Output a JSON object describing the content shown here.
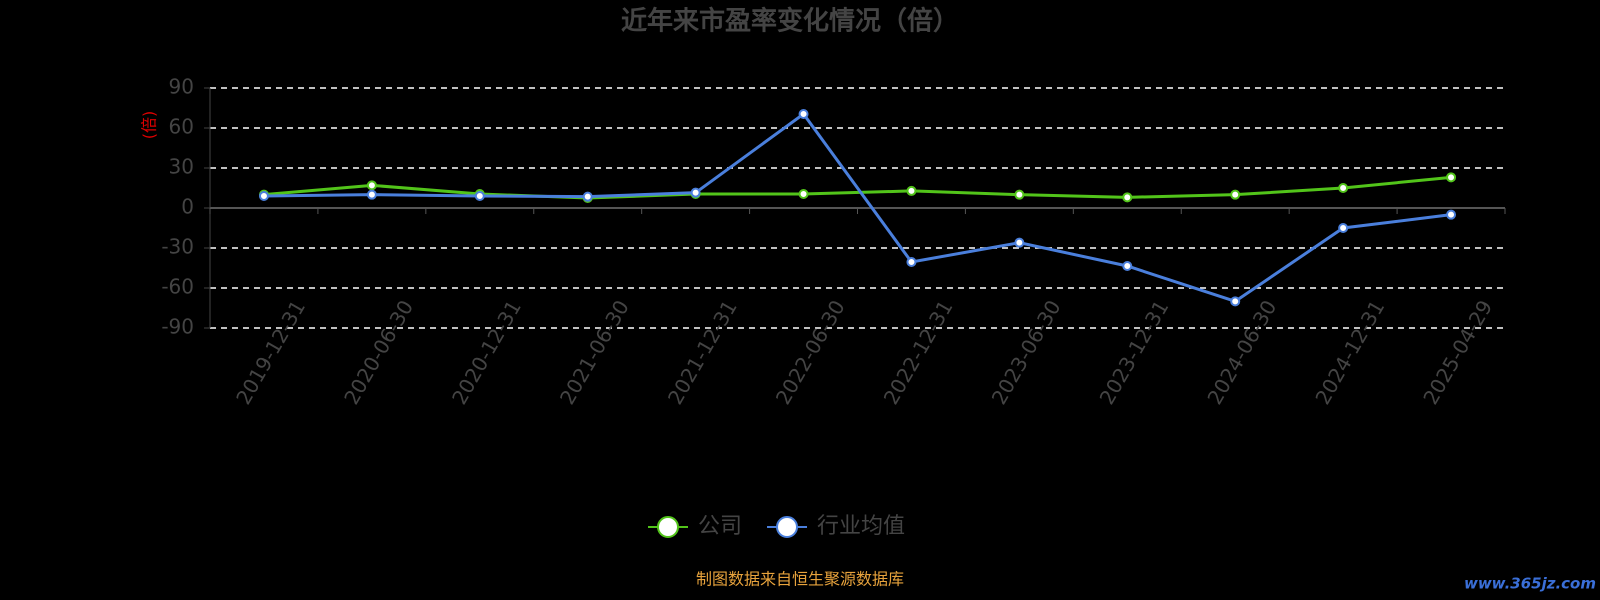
{
  "chart_data": {
    "type": "line",
    "title": "近年来市盈率变化情况（倍）",
    "y_label": "(倍)",
    "categories": [
      "2019-12-31",
      "2020-06-30",
      "2020-12-31",
      "2021-06-30",
      "2021-12-31",
      "2022-06-30",
      "2022-12-31",
      "2023-06-30",
      "2023-12-31",
      "2024-06-30",
      "2024-12-31",
      "2025-04-29"
    ],
    "series": [
      {
        "name": "公司",
        "color": "#52c41a",
        "values": [
          10,
          17,
          10.5,
          7.5,
          10.5,
          10.5,
          12.8,
          10,
          8,
          10,
          15,
          23
        ]
      },
      {
        "name": "行业均值",
        "color": "#4a7fdc",
        "values": [
          9,
          10,
          9,
          8.5,
          11.5,
          70.5,
          -40.5,
          -26,
          -43.5,
          -70,
          -15,
          -5
        ]
      }
    ],
    "ylim": [
      -90,
      90
    ],
    "yticks": [
      -90,
      -60,
      -30,
      0,
      30,
      60,
      90
    ],
    "grid": true,
    "source": "制图数据来自恒生聚源数据库",
    "watermark": "www.365jz.com"
  }
}
